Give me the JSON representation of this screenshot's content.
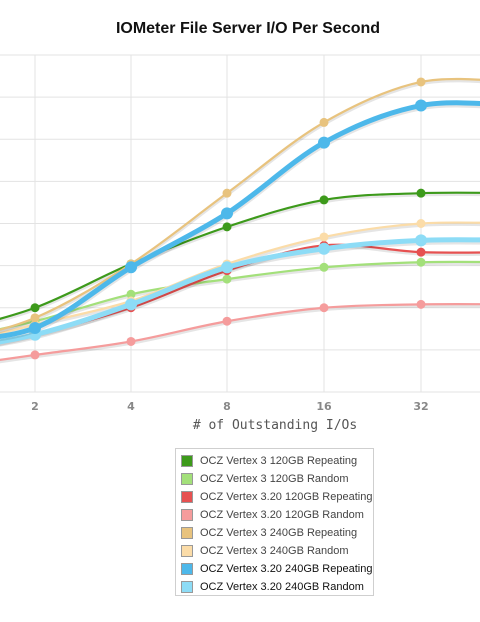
{
  "chart_data": {
    "type": "line",
    "title": "IOMeter File Server I/O Per Second",
    "xlabel": "# of Outstanding I/Os",
    "x_tick_labels": [
      "2",
      "4",
      "8",
      "16",
      "32"
    ],
    "x": [
      1,
      2,
      4,
      8,
      16,
      32,
      64
    ],
    "ylim": [
      0,
      100
    ],
    "grid": true,
    "legend_position": "bottom",
    "series": [
      {
        "name": "OCZ Vertex 3 120GB Repeating",
        "color": "#3d9a1b",
        "values": [
          17,
          25,
          38,
          49,
          57,
          59,
          59
        ]
      },
      {
        "name": "OCZ Vertex 3 120GB Random",
        "color": "#a3e07a",
        "values": [
          15,
          21,
          29,
          33.5,
          37,
          38.5,
          38.5
        ]
      },
      {
        "name": "OCZ Vertex 3.20 120GB Repeating",
        "color": "#e65151",
        "values": [
          11,
          17,
          25,
          36,
          43.5,
          41.5,
          41.5
        ]
      },
      {
        "name": "OCZ Vertex 3.20 120GB Random",
        "color": "#f59c9c",
        "values": [
          7,
          11,
          15,
          21,
          25,
          26,
          26
        ]
      },
      {
        "name": "OCZ Vertex 3 240GB Repeating",
        "color": "#e8c37e",
        "values": [
          14,
          22,
          38,
          59,
          80,
          92,
          92
        ]
      },
      {
        "name": "OCZ Vertex 3 240GB Random",
        "color": "#fbdca8",
        "values": [
          13,
          20,
          27,
          38,
          46,
          50,
          50
        ]
      },
      {
        "name": "OCZ Vertex 3.20 240GB Repeating",
        "color": "#4db8ea",
        "values": [
          15,
          19,
          37,
          53,
          74,
          85,
          85
        ]
      },
      {
        "name": "OCZ Vertex 3.20 240GB Random",
        "color": "#8ddcf6",
        "values": [
          12,
          17,
          26,
          37,
          42.5,
          45,
          45
        ]
      }
    ]
  }
}
